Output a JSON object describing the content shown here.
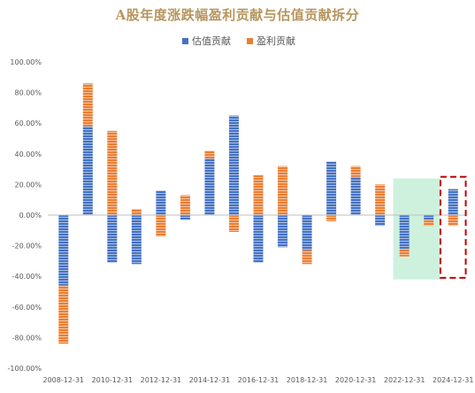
{
  "chart_data": {
    "type": "bar",
    "stacked": true,
    "title": "A股年度涨跌幅盈利贡献与估值贡献拆分",
    "legend_position": "top",
    "categories": [
      "2008-12-31",
      "2009-12-31",
      "2010-12-31",
      "2011-12-31",
      "2012-12-31",
      "2013-12-31",
      "2014-12-31",
      "2015-12-31",
      "2016-12-31",
      "2017-12-31",
      "2018-12-31",
      "2019-12-31",
      "2020-12-31",
      "2021-12-31",
      "2022-12-31",
      "2023-12-31",
      "2024-12-31"
    ],
    "x_tick_labels": [
      "2008-12-31",
      "",
      "2010-12-31",
      "",
      "2012-12-31",
      "",
      "2014-12-31",
      "",
      "2016-12-31",
      "",
      "2018-12-31",
      "",
      "2020-12-31",
      "",
      "2022-12-31",
      "",
      "2024-12-31"
    ],
    "series": [
      {
        "name": "估值贡献",
        "color": "#4472c4",
        "values": [
          -46,
          58,
          -31,
          -32,
          16,
          -3,
          37,
          65,
          -31,
          -21,
          -23,
          35,
          25,
          -7,
          -22,
          -3,
          17
        ]
      },
      {
        "name": "盈利贡献",
        "color": "#ed7d31",
        "values": [
          -38,
          28,
          55,
          4,
          -14,
          13,
          5,
          -11,
          26,
          32,
          -9,
          -4,
          7,
          20,
          -5,
          -4,
          -7
        ]
      }
    ],
    "ylim": [
      -100,
      100
    ],
    "y_ticks": [
      -100,
      -80,
      -60,
      -40,
      -20,
      0,
      20,
      40,
      60,
      80,
      100
    ],
    "y_tick_labels": [
      "-100.00%",
      "-80.00%",
      "-60.00%",
      "-40.00%",
      "-20.00%",
      "0.00%",
      "20.00%",
      "40.00%",
      "60.00%",
      "80.00%",
      "100.00%"
    ],
    "xlabel": "",
    "ylabel": "",
    "grid": false,
    "annotations": [
      {
        "type": "shaded-region",
        "color": "#c6efd8",
        "categories": [
          "2022-12-31",
          "2023-12-31"
        ]
      },
      {
        "type": "dashed-box",
        "color": "#c00000",
        "category": "2024-12-31"
      }
    ]
  }
}
